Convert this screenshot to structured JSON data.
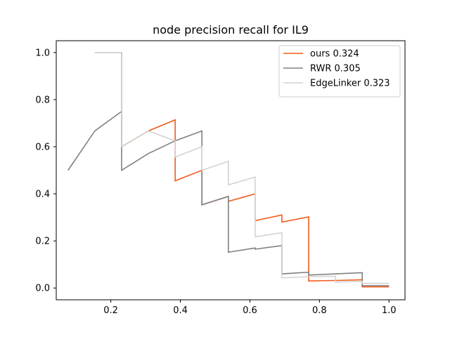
{
  "chart_data": {
    "type": "line",
    "title": "node precision recall for IL9",
    "xlabel": "",
    "ylabel": "",
    "xlim": [
      0.043,
      1.046
    ],
    "ylim": [
      -0.05,
      1.05
    ],
    "xticks": [
      0.2,
      0.4,
      0.6,
      0.8,
      1.0
    ],
    "xtick_labels": [
      "0.2",
      "0.4",
      "0.6",
      "0.8",
      "1.0"
    ],
    "yticks": [
      0.0,
      0.2,
      0.4,
      0.6,
      0.8,
      1.0
    ],
    "ytick_labels": [
      "0.0",
      "0.2",
      "0.4",
      "0.6",
      "0.8",
      "1.0"
    ],
    "grid": false,
    "legend_position": "top-right",
    "series": [
      {
        "name": "ours 0.324",
        "color": "#f25a1d",
        "x": [
          0.154,
          0.231,
          0.231,
          0.308,
          0.385,
          0.385,
          0.462,
          0.462,
          0.538,
          0.538,
          0.615,
          0.615,
          0.692,
          0.692,
          0.769,
          0.769,
          0.846,
          0.923,
          0.923,
          1.0
        ],
        "y": [
          1.0,
          1.0,
          0.6,
          0.667,
          0.714,
          0.455,
          0.5,
          0.353,
          0.389,
          0.368,
          0.4,
          0.286,
          0.31,
          0.28,
          0.302,
          0.03,
          0.032,
          0.035,
          0.005,
          0.005
        ]
      },
      {
        "name": "RWR 0.305",
        "color": "#808080",
        "x": [
          0.077,
          0.154,
          0.231,
          0.231,
          0.308,
          0.385,
          0.462,
          0.462,
          0.538,
          0.538,
          0.615,
          0.615,
          0.692,
          0.692,
          0.769,
          0.769,
          0.846,
          0.923,
          0.923,
          1.0
        ],
        "y": [
          0.5,
          0.667,
          0.75,
          0.5,
          0.571,
          0.625,
          0.667,
          0.353,
          0.389,
          0.152,
          0.17,
          0.165,
          0.18,
          0.06,
          0.067,
          0.055,
          0.06,
          0.065,
          0.01,
          0.01
        ]
      },
      {
        "name": "EdgeLinker 0.323",
        "color": "#d3d3d3",
        "x": [
          0.154,
          0.231,
          0.231,
          0.308,
          0.385,
          0.385,
          0.462,
          0.462,
          0.538,
          0.538,
          0.615,
          0.615,
          0.692,
          0.692,
          0.769,
          0.846,
          0.846,
          0.923,
          0.923,
          1.0
        ],
        "y": [
          1.0,
          1.0,
          0.6,
          0.667,
          0.625,
          0.556,
          0.6,
          0.5,
          0.538,
          0.438,
          0.471,
          0.217,
          0.235,
          0.043,
          0.048,
          0.05,
          0.025,
          0.028,
          0.02,
          0.02
        ]
      }
    ]
  }
}
